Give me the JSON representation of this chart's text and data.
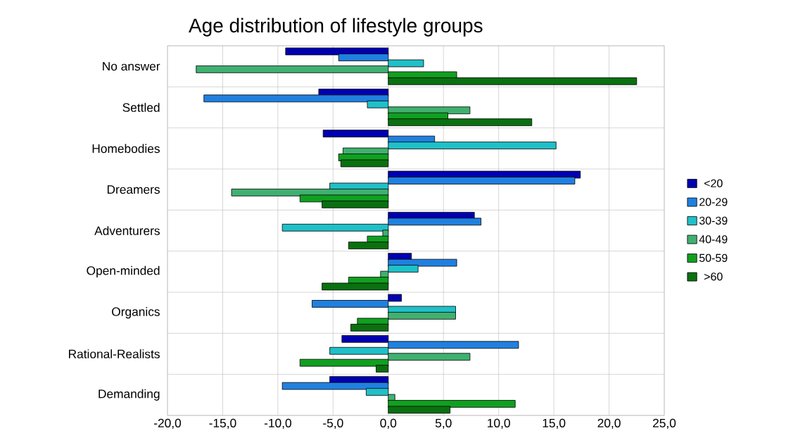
{
  "chart_data": {
    "type": "bar",
    "orientation": "horizontal",
    "title": "Age distribution of lifestyle groups",
    "categories": [
      "No answer",
      "Settled",
      "Homebodies",
      "Dreamers",
      "Adventurers",
      "Open-minded",
      "Organics",
      "Rational-Realists",
      "Demanding"
    ],
    "series": [
      {
        "name": "<20",
        "color": "#0000b0",
        "values": [
          -9.3,
          -6.3,
          -5.9,
          17.4,
          7.8,
          2.1,
          1.2,
          -4.2,
          -5.3
        ]
      },
      {
        "name": "20-29",
        "color": "#2080e0",
        "values": [
          -4.5,
          -16.7,
          4.2,
          16.9,
          8.4,
          6.2,
          -6.9,
          11.8,
          -9.6
        ]
      },
      {
        "name": "30-39",
        "color": "#20c0c8",
        "values": [
          3.2,
          -1.9,
          15.2,
          -5.3,
          -9.6,
          2.7,
          6.1,
          -5.3,
          -2.0
        ]
      },
      {
        "name": "40-49",
        "color": "#40b070",
        "values": [
          -17.4,
          7.4,
          -4.1,
          -14.2,
          -0.5,
          -0.7,
          6.1,
          7.4,
          0.6
        ]
      },
      {
        "name": "50-59",
        "color": "#10a020",
        "values": [
          6.2,
          5.4,
          -4.5,
          -8.0,
          -1.9,
          -3.6,
          -2.8,
          -8.0,
          11.5
        ]
      },
      {
        "name": ">60",
        "color": "#0a7010",
        "values": [
          22.5,
          13.0,
          -4.3,
          -6.0,
          -3.6,
          -6.0,
          -3.4,
          -1.1,
          5.6
        ]
      }
    ],
    "xlim": [
      -20,
      25
    ],
    "xticks": [
      {
        "value": -20,
        "label": "-20,0"
      },
      {
        "value": -15,
        "label": "-15,0"
      },
      {
        "value": -10,
        "label": "-10,0"
      },
      {
        "value": -5,
        "label": "-5,0"
      },
      {
        "value": 0,
        "label": "0,0"
      },
      {
        "value": 5,
        "label": "5,0"
      },
      {
        "value": 10,
        "label": "10,0"
      },
      {
        "value": 15,
        "label": "15,0"
      },
      {
        "value": 20,
        "label": "20,0"
      },
      {
        "value": 25,
        "label": "25,0"
      }
    ],
    "grid": true,
    "legend": "right"
  }
}
